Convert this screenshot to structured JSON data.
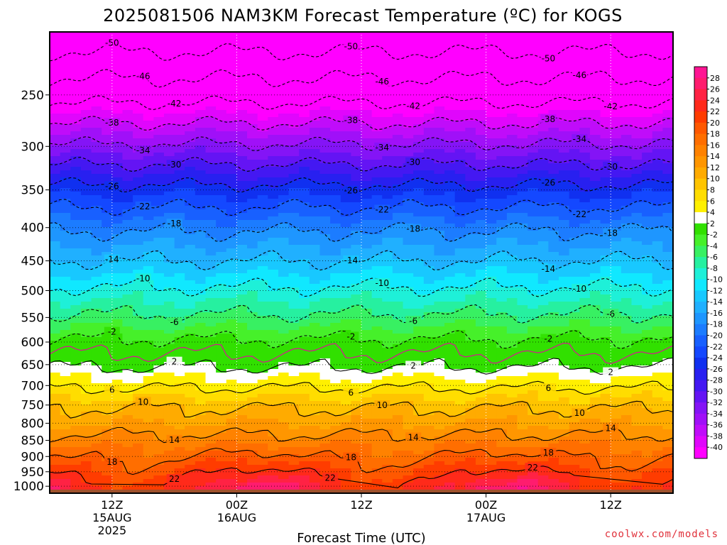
{
  "chart_data": {
    "type": "heatmap",
    "title": "2025081506 NAM3KM Forecast Temperature (ºC) for KOGS",
    "xlabel": "Forecast Time (UTC)",
    "ylabel": "",
    "y_scale": "log",
    "y_reversed": true,
    "y_ticks": [
      250,
      300,
      350,
      400,
      450,
      500,
      550,
      600,
      650,
      700,
      750,
      800,
      850,
      900,
      950,
      1000
    ],
    "x_ticks": [
      {
        "hour": 6,
        "label": "12Z",
        "date": "15AUG",
        "year": "2025"
      },
      {
        "hour": 18,
        "label": "00Z",
        "date": "16AUG",
        "year": ""
      },
      {
        "hour": 30,
        "label": "12Z",
        "date": "",
        "year": ""
      },
      {
        "hour": 42,
        "label": "00Z",
        "date": "17AUG",
        "year": ""
      },
      {
        "hour": 54,
        "label": "12Z",
        "date": "",
        "year": ""
      }
    ],
    "x_range_hours": [
      0,
      60
    ],
    "y_range_hpa": [
      200,
      1025
    ],
    "ground_hpa": 1012,
    "grid": true,
    "colorbar": {
      "labels": [
        "28",
        "26",
        "24",
        "22",
        "20",
        "18",
        "16",
        "14",
        "12",
        "10",
        "8",
        "6",
        "4",
        "2",
        "-2",
        "-4",
        "-6",
        "-8",
        "-10",
        "-12",
        "-14",
        "-16",
        "-18",
        "-20",
        "-22",
        "-24",
        "-26",
        "-28",
        "-30",
        "-32",
        "-34",
        "-36",
        "-38",
        "-40"
      ],
      "colors": [
        "#ff1493",
        "#ff1c6e",
        "#ff2244",
        "#ff2a1a",
        "#ff3c00",
        "#ff5800",
        "#ff6e00",
        "#ff8200",
        "#ff9600",
        "#ffab00",
        "#ffc400",
        "#ffdd00",
        "#fff000",
        "#ffffff",
        "#31e000",
        "#46f02a",
        "#38f062",
        "#26f0a0",
        "#1ef0d8",
        "#10e8ff",
        "#18c8ff",
        "#20b0ff",
        "#1e96ff",
        "#1c7cff",
        "#1860ff",
        "#1448ff",
        "#1030f0",
        "#2820f0",
        "#4418f2",
        "#6414f4",
        "#8414f6",
        "#a010f8",
        "#c00cfa",
        "#e006fc",
        "#ff00ff"
      ],
      "position": "right"
    },
    "levels_hpa": [
      1000,
      950,
      900,
      850,
      800,
      750,
      700,
      650,
      600,
      550,
      500,
      450,
      400,
      350,
      300,
      250,
      200
    ],
    "temperature_profile_c": [
      24,
      21,
      18,
      15,
      12,
      9.5,
      5.5,
      1.5,
      -1.5,
      -5.5,
      -9.5,
      -14,
      -18.5,
      -25,
      -33.5,
      -43.5,
      -53
    ],
    "contours": [
      {
        "label": "-50",
        "level_c": -50,
        "style": "dashed"
      },
      {
        "label": "-46",
        "level_c": -46,
        "style": "dashed"
      },
      {
        "label": "-42",
        "level_c": -42,
        "style": "dashed"
      },
      {
        "label": "-38",
        "level_c": -38,
        "style": "dashed"
      },
      {
        "label": "-34",
        "level_c": -34,
        "style": "dashed"
      },
      {
        "label": "-30",
        "level_c": -30,
        "style": "dashed"
      },
      {
        "label": "-26",
        "level_c": -26,
        "style": "dashed"
      },
      {
        "label": "-22",
        "level_c": -22,
        "style": "dashed"
      },
      {
        "label": "-18",
        "level_c": -18,
        "style": "dashed"
      },
      {
        "label": "-14",
        "level_c": -14,
        "style": "dashed"
      },
      {
        "label": "-10",
        "level_c": -10,
        "style": "dashed"
      },
      {
        "label": "-6",
        "level_c": -6,
        "style": "dashed"
      },
      {
        "label": "-2",
        "level_c": -2,
        "style": "dashed"
      },
      {
        "label": "",
        "level_c": 0,
        "style": "freezing"
      },
      {
        "label": "2",
        "level_c": 2,
        "style": "solid"
      },
      {
        "label": "6",
        "level_c": 6,
        "style": "solid"
      },
      {
        "label": "10",
        "level_c": 10,
        "style": "solid"
      },
      {
        "label": "14",
        "level_c": 14,
        "style": "solid"
      },
      {
        "label": "18",
        "level_c": 18,
        "style": "solid"
      },
      {
        "label": "22",
        "level_c": 22,
        "style": "solid"
      }
    ]
  },
  "credit": "coolwx.com/models"
}
